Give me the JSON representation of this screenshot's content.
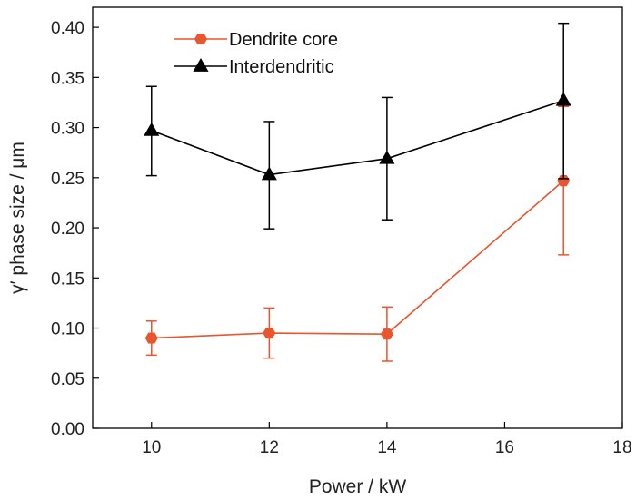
{
  "chart_data": {
    "type": "line",
    "xlabel": "Power / kW",
    "ylabel": "γ′ phase size / μm",
    "xlim": [
      9,
      18
    ],
    "ylim": [
      0,
      0.42
    ],
    "x_ticks": [
      10,
      12,
      14,
      16,
      18
    ],
    "x_tick_labels": [
      "10",
      "12",
      "14",
      "16",
      "18"
    ],
    "y_ticks": [
      0,
      0.05,
      0.1,
      0.15,
      0.2,
      0.25,
      0.3,
      0.35,
      0.4
    ],
    "y_tick_labels": [
      "0.00",
      "0.05",
      "0.10",
      "0.15",
      "0.20",
      "0.25",
      "0.30",
      "0.35",
      "0.40"
    ],
    "grid": false,
    "legend_position": "top-left",
    "series": [
      {
        "name": "Dendrite core",
        "color": "#e8552e",
        "marker": "hexagon",
        "x": [
          10,
          12,
          14,
          17
        ],
        "y": [
          0.09,
          0.095,
          0.094,
          0.247
        ],
        "error_low": [
          0.073,
          0.07,
          0.067,
          0.173
        ],
        "error_high": [
          0.107,
          0.12,
          0.121,
          0.321
        ]
      },
      {
        "name": "Interdendritic",
        "color": "#000000",
        "marker": "triangle",
        "x": [
          10,
          12,
          14,
          17
        ],
        "y": [
          0.297,
          0.253,
          0.269,
          0.327
        ],
        "error_low": [
          0.252,
          0.199,
          0.208,
          0.249
        ],
        "error_high": [
          0.341,
          0.306,
          0.33,
          0.404
        ]
      }
    ]
  }
}
